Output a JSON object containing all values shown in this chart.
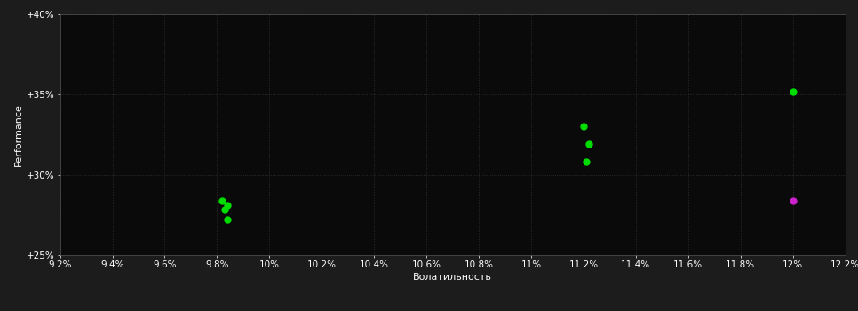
{
  "background_color": "#1c1c1c",
  "plot_bg_color": "#0a0a0a",
  "grid_color": "#333333",
  "text_color": "#ffffff",
  "xlabel": "Волатильность",
  "ylabel": "Performance",
  "xlim": [
    0.092,
    0.122
  ],
  "ylim": [
    0.25,
    0.4
  ],
  "xtick_step": 0.002,
  "ytick_values": [
    0.25,
    0.3,
    0.35,
    0.4
  ],
  "ytick_labels": [
    "+25%",
    "+30%",
    "+35%",
    "+40%"
  ],
  "green_points_x": [
    0.0982,
    0.0984,
    0.0983,
    0.0984,
    0.112,
    0.1122,
    0.1121,
    0.12
  ],
  "green_points_y": [
    0.284,
    0.281,
    0.278,
    0.272,
    0.33,
    0.319,
    0.308,
    0.352
  ],
  "magenta_points_x": [
    0.12
  ],
  "magenta_points_y": [
    0.284
  ],
  "point_size": 25,
  "green_color": "#00dd00",
  "magenta_color": "#cc22cc",
  "axis_fontsize": 8,
  "tick_fontsize": 7.5
}
